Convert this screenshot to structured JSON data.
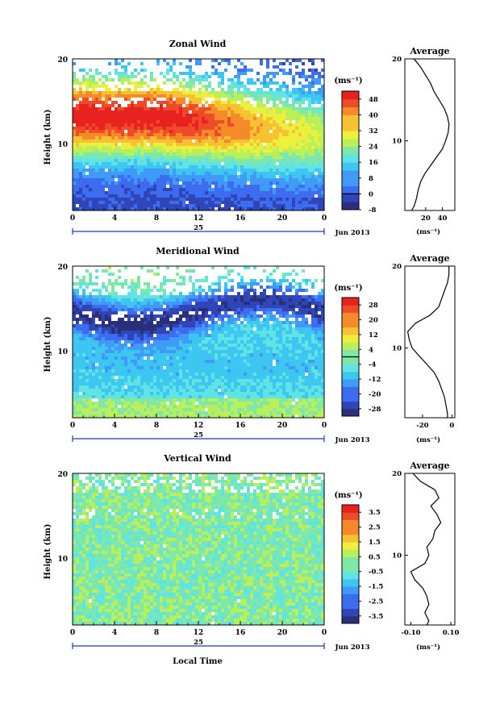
{
  "chart_data": [
    {
      "type": "heatmap",
      "title": "Zonal Wind",
      "ylabel": "Height (km)",
      "xlim": [
        0,
        24
      ],
      "ylim": [
        1.5,
        20
      ],
      "x_ticks": [
        "0",
        "4",
        "8",
        "12",
        "16",
        "20",
        "0"
      ],
      "y_ticks": [
        "10",
        "20"
      ],
      "date_day": "25",
      "date_label": "Jun 2013",
      "colorbar": {
        "unit": "(ms⁻¹)",
        "min": -8,
        "max": 52,
        "step": 4,
        "tick_labels": [
          "48",
          "40",
          "32",
          "24",
          "16",
          "8",
          "0",
          "-8"
        ],
        "zero_line": 0
      },
      "profile": {
        "title": "Average",
        "unit": "(ms⁻¹)",
        "xlim": [
          -5,
          55
        ],
        "x_ticks": [
          "20",
          "40"
        ],
        "y_ticks": [
          "10",
          "20"
        ],
        "height_km": [
          1.5,
          2,
          3,
          4,
          5,
          6,
          7,
          8,
          9,
          10,
          11,
          12,
          13,
          14,
          15,
          16,
          17,
          18,
          19,
          20
        ],
        "value": [
          3,
          6,
          9,
          11,
          14,
          19,
          26,
          33,
          40,
          44,
          47,
          48,
          46,
          42,
          36,
          30,
          26,
          20,
          14,
          6
        ]
      }
    },
    {
      "type": "heatmap",
      "title": "Meridional Wind",
      "ylabel": "Height (km)",
      "xlim": [
        0,
        24
      ],
      "ylim": [
        1.5,
        20
      ],
      "x_ticks": [
        "0",
        "4",
        "8",
        "12",
        "16",
        "20",
        "0"
      ],
      "y_ticks": [
        "10",
        "20"
      ],
      "date_day": "25",
      "date_label": "Jun 2013",
      "colorbar": {
        "unit": "(ms⁻¹)",
        "min": -32,
        "max": 32,
        "step": 4,
        "tick_labels": [
          "28",
          "20",
          "12",
          "4",
          "-4",
          "-12",
          "-20",
          "-28"
        ],
        "zero_line": 0
      },
      "profile": {
        "title": "Average",
        "unit": "(ms⁻¹)",
        "xlim": [
          -32,
          2
        ],
        "x_ticks": [
          "-20",
          "0"
        ],
        "y_ticks": [
          "10",
          "20"
        ],
        "height_km": [
          1.5,
          2,
          3,
          4,
          5,
          6,
          7,
          8,
          9,
          10,
          11,
          12,
          13,
          14,
          15,
          16,
          17,
          18,
          19,
          20
        ],
        "value": [
          -3,
          -3,
          -4,
          -5,
          -7,
          -9,
          -12,
          -17,
          -22,
          -27,
          -29,
          -30,
          -25,
          -15,
          -9,
          -7,
          -5,
          -3,
          -2,
          -2
        ]
      }
    },
    {
      "type": "heatmap",
      "title": "Vertical Wind",
      "ylabel": "Height (km)",
      "xlabel": "Local Time",
      "xlim": [
        0,
        24
      ],
      "ylim": [
        1.5,
        20
      ],
      "x_ticks": [
        "0",
        "4",
        "8",
        "12",
        "16",
        "20",
        "0"
      ],
      "y_ticks": [
        "10",
        "20"
      ],
      "date_day": "25",
      "date_label": "Jun 2013",
      "colorbar": {
        "unit": "(ms⁻¹)",
        "min": -4,
        "max": 4,
        "step": 0.5,
        "tick_labels": [
          "3.5",
          "2.5",
          "1.5",
          "0.5",
          "-0.5",
          "-1.5",
          "-2.5",
          "-3.5"
        ]
      },
      "profile": {
        "title": "Average",
        "unit": "(ms⁻¹)",
        "xlim": [
          -0.13,
          0.12
        ],
        "x_ticks": [
          "-0.10",
          "0.10"
        ],
        "y_ticks": [
          "10",
          "20"
        ],
        "height_km": [
          1.5,
          2,
          3,
          4,
          5,
          6,
          7,
          8,
          9,
          10,
          11,
          12,
          13,
          14,
          15,
          16,
          17,
          18,
          19,
          20
        ],
        "value": [
          -0.02,
          -0.01,
          -0.03,
          -0.01,
          -0.02,
          -0.04,
          -0.08,
          -0.1,
          -0.03,
          -0.01,
          -0.02,
          0.01,
          0.02,
          0.05,
          0.03,
          0.0,
          0.04,
          0.02,
          -0.05,
          -0.09
        ]
      }
    }
  ],
  "colors": {
    "background": "#ffffff",
    "missing": "#ffffff",
    "colormap": [
      "#2b2f7a",
      "#2f46b8",
      "#3d6cf0",
      "#3f9bf7",
      "#3ec6f2",
      "#5fe3e3",
      "#7fe7a8",
      "#b9f05a",
      "#ecf03c",
      "#f7c232",
      "#f58a2a",
      "#ef4b2a",
      "#e8231f"
    ]
  }
}
